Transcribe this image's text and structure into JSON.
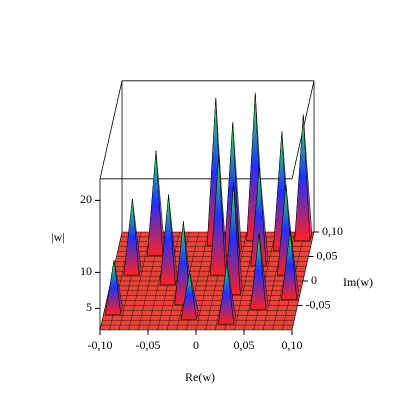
{
  "chart_data": {
    "type": "surface3d",
    "xlabel": "Re(w)",
    "ylabel": "Im(w)",
    "zlabel": "|w|",
    "xlim": [
      -0.1,
      0.1
    ],
    "ylim": [
      -0.1,
      0.1
    ],
    "zlim": [
      2,
      23
    ],
    "xticks": [
      {
        "value": -0.1,
        "label": "-0,10"
      },
      {
        "value": -0.05,
        "label": "-0,05"
      },
      0,
      {
        "value": 0.05,
        "label": "0,05"
      },
      {
        "value": 0.1,
        "label": "0,10"
      }
    ],
    "yticks": [
      {
        "value": -0.05,
        "label": "-0,05"
      },
      0,
      {
        "value": 0.05,
        "label": "0,05"
      },
      {
        "value": 0.1,
        "label": "0,10"
      }
    ],
    "zticks": [
      5,
      10,
      20
    ],
    "x": [
      -0.08,
      -0.06,
      -0.09,
      -0.04,
      -0.02,
      0.0,
      0.02,
      0.01,
      0.03,
      0.04,
      0.05,
      0.06,
      0.07,
      0.08,
      0.09,
      -0.01,
      0.03,
      0.09
    ],
    "y": [
      0.02,
      0.06,
      -0.06,
      0.0,
      -0.04,
      0.08,
      0.06,
      0.02,
      -0.02,
      0.09,
      0.04,
      -0.05,
      0.07,
      0.02,
      -0.03,
      -0.07,
      -0.08,
      0.09
    ],
    "z": [
      12,
      16,
      9,
      14,
      13,
      22,
      20,
      18,
      17,
      22,
      15,
      12,
      18,
      14,
      11,
      8,
      10,
      19
    ],
    "base_color": "#e8443a",
    "colors": [
      "#ff2020",
      "#2030ff",
      "#30ff40"
    ]
  }
}
